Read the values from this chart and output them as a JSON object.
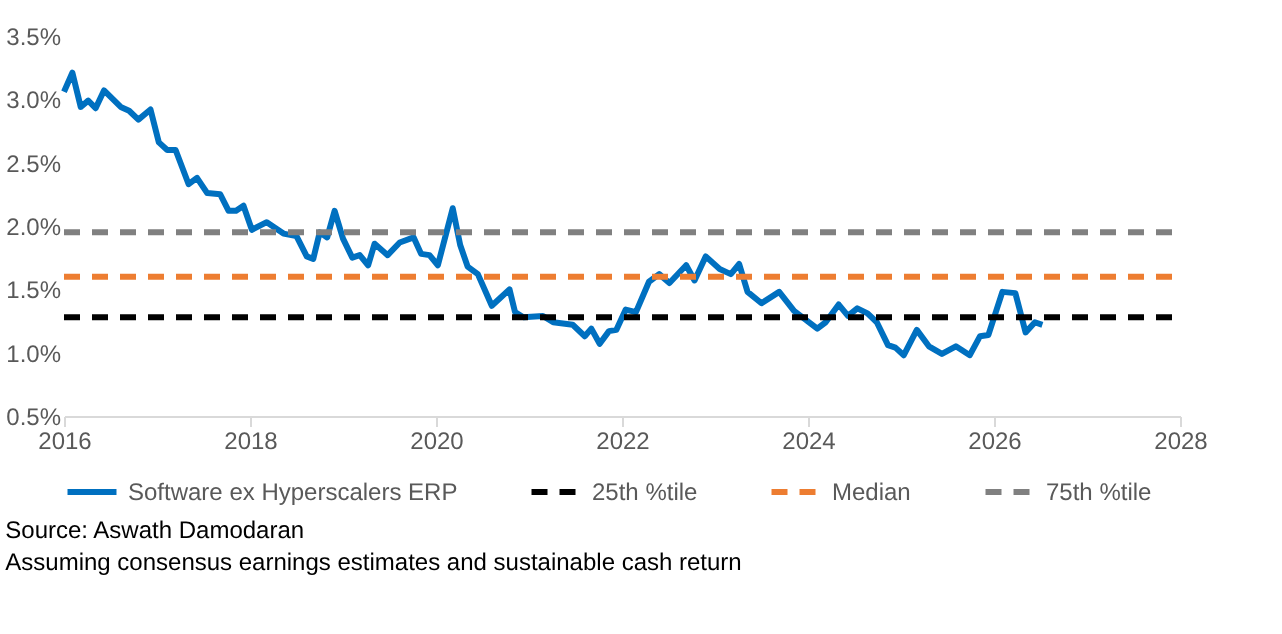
{
  "chart_data": {
    "type": "line",
    "series": [
      {
        "name": "Software ex Hyperscalers ERP",
        "color": "#0070c0",
        "line_style": "solid",
        "x": [
          2016.0,
          2016.09,
          2016.18,
          2016.26,
          2016.34,
          2016.43,
          2016.61,
          2016.7,
          2016.8,
          2016.93,
          2017.02,
          2017.11,
          2017.2,
          2017.34,
          2017.43,
          2017.54,
          2017.68,
          2017.77,
          2017.85,
          2017.93,
          2018.02,
          2018.18,
          2018.36,
          2018.5,
          2018.61,
          2018.68,
          2018.75,
          2018.83,
          2018.91,
          2019.0,
          2019.1,
          2019.18,
          2019.27,
          2019.34,
          2019.48,
          2019.61,
          2019.76,
          2019.84,
          2019.93,
          2020.02,
          2020.18,
          2020.26,
          2020.34,
          2020.45,
          2020.6,
          2020.79,
          2020.85,
          2020.94,
          2021.15,
          2021.26,
          2021.47,
          2021.6,
          2021.67,
          2021.76,
          2021.86,
          2021.94,
          2022.04,
          2022.15,
          2022.29,
          2022.4,
          2022.51,
          2022.69,
          2022.78,
          2022.9,
          2023.05,
          2023.17,
          2023.26,
          2023.35,
          2023.5,
          2023.69,
          2023.85,
          2024.1,
          2024.19,
          2024.33,
          2024.43,
          2024.53,
          2024.64,
          2024.74,
          2024.86,
          2024.94,
          2025.03,
          2025.17,
          2025.3,
          2025.44,
          2025.59,
          2025.74,
          2025.85,
          2025.94,
          2026.09,
          2026.23,
          2026.34,
          2026.44,
          2026.52
        ],
        "values": [
          3.06,
          3.21,
          2.94,
          2.99,
          2.93,
          3.07,
          2.94,
          2.91,
          2.84,
          2.92,
          2.66,
          2.6,
          2.6,
          2.33,
          2.38,
          2.26,
          2.25,
          2.12,
          2.12,
          2.16,
          1.97,
          2.03,
          1.94,
          1.92,
          1.76,
          1.74,
          1.95,
          1.91,
          2.12,
          1.9,
          1.75,
          1.77,
          1.69,
          1.86,
          1.77,
          1.87,
          1.91,
          1.78,
          1.77,
          1.69,
          2.14,
          1.85,
          1.68,
          1.62,
          1.37,
          1.5,
          1.32,
          1.28,
          1.29,
          1.24,
          1.22,
          1.13,
          1.19,
          1.07,
          1.17,
          1.18,
          1.34,
          1.32,
          1.56,
          1.62,
          1.55,
          1.69,
          1.57,
          1.76,
          1.66,
          1.62,
          1.7,
          1.48,
          1.39,
          1.48,
          1.33,
          1.19,
          1.24,
          1.38,
          1.29,
          1.35,
          1.31,
          1.24,
          1.06,
          1.04,
          0.98,
          1.18,
          1.05,
          0.99,
          1.05,
          0.98,
          1.13,
          1.14,
          1.48,
          1.47,
          1.16,
          1.24,
          1.22
        ]
      },
      {
        "name": "25th %tile",
        "color": "#000000",
        "line_style": "dashed",
        "x": [
          2016,
          2028
        ],
        "values": [
          1.28,
          1.28
        ]
      },
      {
        "name": "Median",
        "color": "#ed7d31",
        "line_style": "dashed",
        "x": [
          2016,
          2028
        ],
        "values": [
          1.6,
          1.6
        ]
      },
      {
        "name": "75th %tile",
        "color": "#808080",
        "line_style": "dashed",
        "x": [
          2016,
          2028
        ],
        "values": [
          1.95,
          1.95
        ]
      }
    ],
    "xlim": [
      2016,
      2028
    ],
    "xticks": [
      2016,
      2018,
      2020,
      2022,
      2024,
      2026,
      2028
    ],
    "ylim": [
      0.5,
      3.5
    ],
    "yticks": [
      {
        "value": 0.5,
        "label": "0.5%"
      },
      {
        "value": 1.0,
        "label": "1.0%"
      },
      {
        "value": 1.5,
        "label": "1.5%"
      },
      {
        "value": 2.0,
        "label": "2.0%"
      },
      {
        "value": 2.5,
        "label": "2.5%"
      },
      {
        "value": 3.0,
        "label": "3.0%"
      },
      {
        "value": 3.5,
        "label": "3.5%"
      }
    ],
    "grid": false,
    "legend": "bottom",
    "marker": "none",
    "annotations": [
      "Source: Aswath Damodaran",
      "Assuming consensus earnings estimates and sustainable cash return"
    ]
  }
}
